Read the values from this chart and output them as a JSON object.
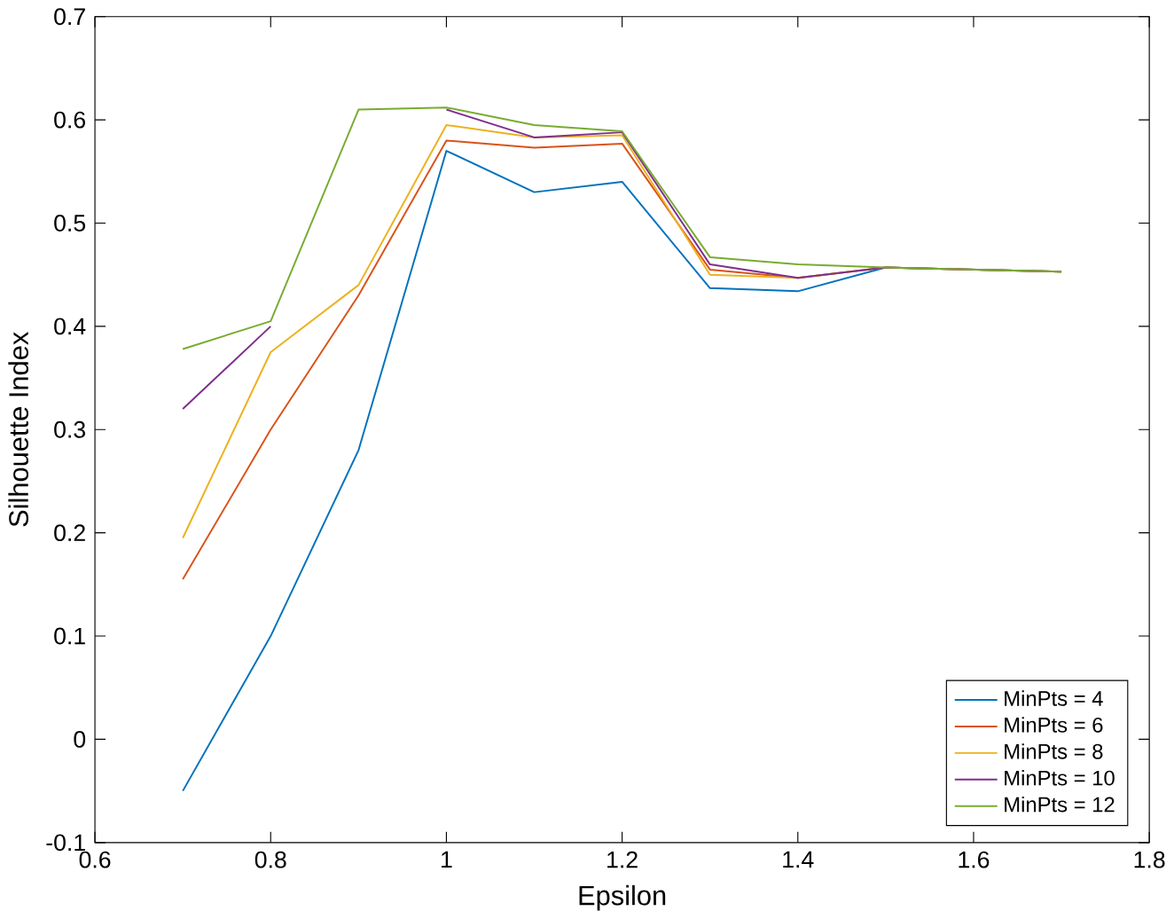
{
  "chart_data": {
    "type": "line",
    "xlabel": "Epsilon",
    "ylabel": "Silhouette Index",
    "x": [
      0.7,
      0.8,
      0.9,
      1.0,
      1.1,
      1.2,
      1.3,
      1.4,
      1.5,
      1.7
    ],
    "series": [
      {
        "name": "MinPts = 4",
        "color": "#0072bd",
        "values": [
          -0.05,
          0.1,
          0.28,
          0.57,
          0.53,
          0.54,
          0.437,
          0.434,
          0.457,
          0.453
        ]
      },
      {
        "name": "MinPts = 6",
        "color": "#d95319",
        "values": [
          0.155,
          0.3,
          0.43,
          0.58,
          0.573,
          0.577,
          0.455,
          0.447,
          0.457,
          0.453
        ]
      },
      {
        "name": "MinPts = 8",
        "color": "#edb120",
        "values": [
          0.195,
          0.375,
          0.44,
          0.595,
          0.583,
          0.585,
          0.45,
          0.447,
          0.457,
          0.453
        ]
      },
      {
        "name": "MinPts = 10",
        "color": "#7e2f8e",
        "values": [
          0.32,
          0.4,
          null,
          0.61,
          0.583,
          0.588,
          0.46,
          0.447,
          0.457,
          0.453
        ]
      },
      {
        "name": "MinPts = 12",
        "color": "#77ac30",
        "values": [
          0.378,
          0.405,
          0.61,
          0.612,
          0.595,
          0.589,
          0.467,
          0.46,
          0.457,
          0.453
        ]
      }
    ],
    "xlim": [
      0.6,
      1.8
    ],
    "ylim": [
      -0.1,
      0.7
    ],
    "xticks": [
      0.6,
      0.8,
      1,
      1.2,
      1.4,
      1.6,
      1.8
    ],
    "yticks": [
      -0.1,
      0,
      0.1,
      0.2,
      0.3,
      0.4,
      0.5,
      0.6,
      0.7
    ],
    "grid": false,
    "legend": "bottom right",
    "marker": "none",
    "line_style": "solid"
  }
}
